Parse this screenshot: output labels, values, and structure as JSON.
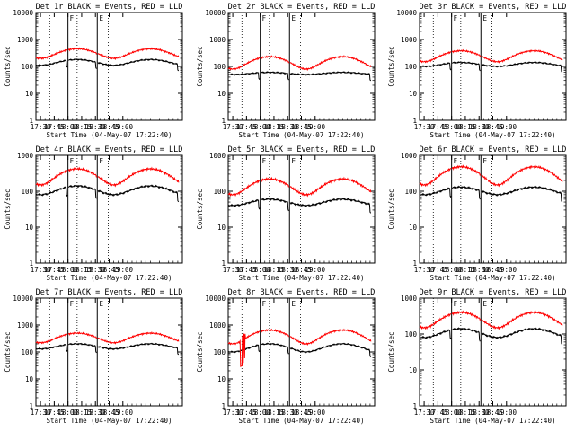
{
  "colors": {
    "events": "#000000",
    "lld": "#ff0000",
    "frame": "#000000",
    "background": "#ffffff"
  },
  "chart_data": [
    {
      "type": "line",
      "title": "Det 1r BLACK = Events, RED = LLD",
      "xlabel": "Start Time (04-May-07 17:22:40)",
      "ylabel": "Counts/sec",
      "yscale": "log",
      "ylim": [
        1,
        10000
      ],
      "xlim_minutes_after_17_00": [
        22.67,
        65
      ],
      "x_ticks": [
        "17:30",
        "17:45",
        "18:00",
        "18:15",
        "18:30",
        "18:45",
        "19:00"
      ],
      "y_ticks": [
        "1",
        "10",
        "100",
        "1000",
        "10000"
      ],
      "markers": [
        "F",
        "E"
      ],
      "series": [
        {
          "name": "Events",
          "base": [
            180,
            110
          ],
          "dip": [
            [
              40,
              50,
              0.55
            ]
          ],
          "spikes": []
        },
        {
          "name": "LLD",
          "base": [
            450,
            200
          ],
          "dip": [],
          "spikes": []
        }
      ]
    },
    {
      "type": "line",
      "title": "Det 2r BLACK = Events, RED = LLD",
      "xlabel": "Start Time (04-May-07 17:22:40)",
      "ylabel": "Counts/sec",
      "yscale": "log",
      "ylim": [
        1,
        10000
      ],
      "xlim_minutes_after_17_00": [
        22.67,
        65
      ],
      "x_ticks": [
        "17:30",
        "17:45",
        "18:00",
        "18:15",
        "18:30",
        "18:45",
        "19:00"
      ],
      "y_ticks": [
        "1",
        "10",
        "100",
        "1000",
        "10000"
      ],
      "markers": [
        "F",
        "E"
      ],
      "series": [
        {
          "name": "Events",
          "base": [
            60,
            50
          ],
          "dip": [
            [
              40,
              50,
              0.55
            ]
          ],
          "spikes": []
        },
        {
          "name": "LLD",
          "base": [
            230,
            80
          ],
          "dip": [],
          "spikes": []
        }
      ]
    },
    {
      "type": "line",
      "title": "Det 3r BLACK = Events, RED = LLD",
      "xlabel": "Start Time (04-May-07 17:22:40)",
      "ylabel": "Counts/sec",
      "yscale": "log",
      "ylim": [
        1,
        10000
      ],
      "xlim_minutes_after_17_00": [
        22.67,
        65
      ],
      "x_ticks": [
        "17:30",
        "17:45",
        "18:00",
        "18:15",
        "18:30",
        "18:45",
        "19:00"
      ],
      "y_ticks": [
        "1",
        "10",
        "100",
        "1000",
        "10000"
      ],
      "markers": [
        "F",
        "E"
      ],
      "series": [
        {
          "name": "Events",
          "base": [
            140,
            100
          ],
          "dip": [
            [
              40,
              50,
              0.55
            ]
          ],
          "spikes": []
        },
        {
          "name": "LLD",
          "base": [
            380,
            150
          ],
          "dip": [],
          "spikes": []
        }
      ]
    },
    {
      "type": "line",
      "title": "Det 4r BLACK = Events, RED = LLD",
      "xlabel": "Start Time (04-May-07 17:22:40)",
      "ylabel": "Counts/sec",
      "yscale": "log",
      "ylim": [
        1,
        1000
      ],
      "xlim_minutes_after_17_00": [
        22.67,
        65
      ],
      "x_ticks": [
        "17:30",
        "17:45",
        "18:00",
        "18:15",
        "18:30",
        "18:45",
        "19:00"
      ],
      "y_ticks": [
        "1",
        "10",
        "100",
        "1000"
      ],
      "markers": [
        "F",
        "E"
      ],
      "series": [
        {
          "name": "Events",
          "base": [
            140,
            80
          ],
          "dip": [
            [
              40,
              50,
              0.55
            ]
          ],
          "spikes": []
        },
        {
          "name": "LLD",
          "base": [
            420,
            150
          ],
          "dip": [],
          "spikes": []
        }
      ]
    },
    {
      "type": "line",
      "title": "Det 5r BLACK = Events, RED = LLD",
      "xlabel": "Start Time (04-May-07 17:22:40)",
      "ylabel": "Counts/sec",
      "yscale": "log",
      "ylim": [
        1,
        1000
      ],
      "xlim_minutes_after_17_00": [
        22.67,
        65
      ],
      "x_ticks": [
        "17:30",
        "17:45",
        "18:00",
        "18:15",
        "18:30",
        "18:45",
        "19:00"
      ],
      "y_ticks": [
        "1",
        "10",
        "100",
        "1000"
      ],
      "markers": [
        "F",
        "E"
      ],
      "series": [
        {
          "name": "Events",
          "base": [
            60,
            40
          ],
          "dip": [
            [
              40,
              50,
              0.55
            ]
          ],
          "spikes": []
        },
        {
          "name": "LLD",
          "base": [
            220,
            80
          ],
          "dip": [],
          "spikes": []
        }
      ]
    },
    {
      "type": "line",
      "title": "Det 6r BLACK = Events, RED = LLD",
      "xlabel": "Start Time (04-May-07 17:22:40)",
      "ylabel": "Counts/sec",
      "yscale": "log",
      "ylim": [
        1,
        1000
      ],
      "xlim_minutes_after_17_00": [
        22.67,
        65
      ],
      "x_ticks": [
        "17:30",
        "17:45",
        "18:00",
        "18:15",
        "18:30",
        "18:45",
        "19:00"
      ],
      "y_ticks": [
        "1",
        "10",
        "100",
        "1000"
      ],
      "markers": [
        "F",
        "E"
      ],
      "series": [
        {
          "name": "Events",
          "base": [
            130,
            80
          ],
          "dip": [
            [
              40,
              50,
              0.55
            ]
          ],
          "spikes": []
        },
        {
          "name": "LLD",
          "base": [
            480,
            150
          ],
          "dip": [],
          "spikes": []
        }
      ]
    },
    {
      "type": "line",
      "title": "Det 7r BLACK = Events, RED = LLD",
      "xlabel": "Start Time (04-May-07 17:22:40)",
      "ylabel": "Counts/sec",
      "yscale": "log",
      "ylim": [
        1,
        10000
      ],
      "xlim_minutes_after_17_00": [
        22.67,
        65
      ],
      "x_ticks": [
        "17:30",
        "17:45",
        "18:00",
        "18:15",
        "18:30",
        "18:45",
        "19:00"
      ],
      "y_ticks": [
        "1",
        "10",
        "100",
        "1000",
        "10000"
      ],
      "markers": [
        "F",
        "E"
      ],
      "series": [
        {
          "name": "Events",
          "base": [
            200,
            130
          ],
          "dip": [
            [
              40,
              50,
              0.55
            ]
          ],
          "spikes": []
        },
        {
          "name": "LLD",
          "base": [
            500,
            220
          ],
          "dip": [],
          "spikes": []
        }
      ]
    },
    {
      "type": "line",
      "title": "Det 8r BLACK = Events, RED = LLD",
      "xlabel": "Start Time (04-May-07 17:22:40)",
      "ylabel": "Counts/sec",
      "yscale": "log",
      "ylim": [
        1,
        10000
      ],
      "xlim_minutes_after_17_00": [
        22.67,
        65
      ],
      "x_ticks": [
        "17:30",
        "17:45",
        "18:00",
        "18:15",
        "18:30",
        "18:45",
        "19:00"
      ],
      "y_ticks": [
        "1",
        "10",
        "100",
        "1000",
        "10000"
      ],
      "markers": [
        "F",
        "E"
      ],
      "series": [
        {
          "name": "Events",
          "base": [
            200,
            100
          ],
          "dip": [
            [
              40,
              50,
              0.55
            ]
          ],
          "spikes": []
        },
        {
          "name": "LLD",
          "base": [
            650,
            200
          ],
          "dip": [],
          "spikes": [
            [
              38.5,
              40.5,
              30
            ],
            [
              40.5,
              41,
              400
            ],
            [
              41,
              42,
              40
            ],
            [
              42,
              42.6,
              450
            ],
            [
              42.6,
              43.4,
              60
            ],
            [
              43.4,
              44,
              450
            ]
          ]
        }
      ]
    },
    {
      "type": "line",
      "title": "Det 9r BLACK = Events, RED = LLD",
      "xlabel": "Start Time (04-May-07 17:22:40)",
      "ylabel": "Counts/sec",
      "yscale": "log",
      "ylim": [
        1,
        1000
      ],
      "xlim_minutes_after_17_00": [
        22.67,
        65
      ],
      "x_ticks": [
        "17:30",
        "17:45",
        "18:00",
        "18:15",
        "18:30",
        "18:45",
        "19:00"
      ],
      "y_ticks": [
        "1",
        "10",
        "100",
        "1000"
      ],
      "markers": [
        "F",
        "E"
      ],
      "series": [
        {
          "name": "Events",
          "base": [
            140,
            80
          ],
          "dip": [
            [
              40,
              50,
              0.55
            ]
          ],
          "spikes": []
        },
        {
          "name": "LLD",
          "base": [
            400,
            150
          ],
          "dip": [],
          "spikes": []
        }
      ]
    }
  ]
}
